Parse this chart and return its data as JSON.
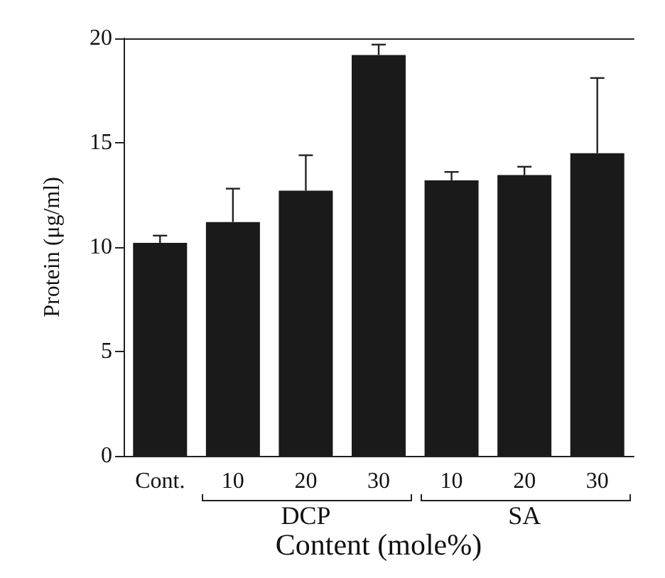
{
  "chart_data": {
    "type": "bar",
    "categories": [
      "Cont.",
      "10",
      "20",
      "30",
      "10",
      "20",
      "30"
    ],
    "values": [
      10.2,
      11.2,
      12.7,
      19.2,
      13.2,
      13.45,
      14.5
    ],
    "errors": [
      [
        10.2,
        10.55
      ],
      [
        11.2,
        12.8
      ],
      [
        12.7,
        14.4
      ],
      [
        19.2,
        19.7
      ],
      [
        13.2,
        13.6
      ],
      [
        13.45,
        13.85
      ],
      [
        14.5,
        18.1
      ]
    ],
    "color": "#1a1a1a",
    "ylim": [
      0,
      20
    ],
    "yticks": [
      0,
      5,
      10,
      15,
      20
    ],
    "grid": false,
    "ylabel": "Protein (μg/ml)",
    "xlabel": "Content (mole%)",
    "annotations": [
      "DCP",
      "SA"
    ]
  }
}
